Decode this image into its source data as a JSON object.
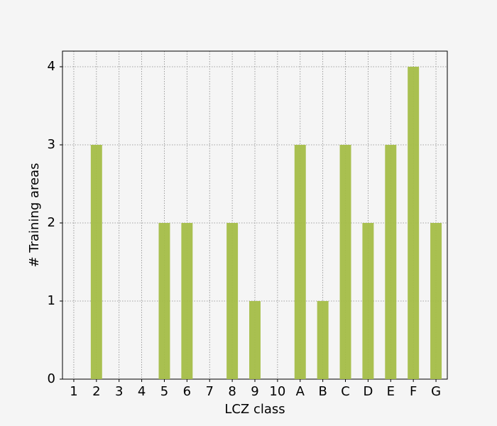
{
  "chart_data": {
    "type": "bar",
    "x_label": "LCZ class",
    "y_label": "# Training areas",
    "categories": [
      "1",
      "2",
      "3",
      "4",
      "5",
      "6",
      "7",
      "8",
      "9",
      "10",
      "A",
      "B",
      "C",
      "D",
      "E",
      "F",
      "G"
    ],
    "values": [
      0,
      3,
      0,
      0,
      2,
      2,
      0,
      2,
      1,
      0,
      3,
      1,
      3,
      2,
      3,
      4,
      2
    ],
    "color": "#a4bd47",
    "ylim": [
      0,
      4.2
    ],
    "yticks": [
      0,
      1,
      2,
      3,
      4
    ],
    "grid": true
  }
}
